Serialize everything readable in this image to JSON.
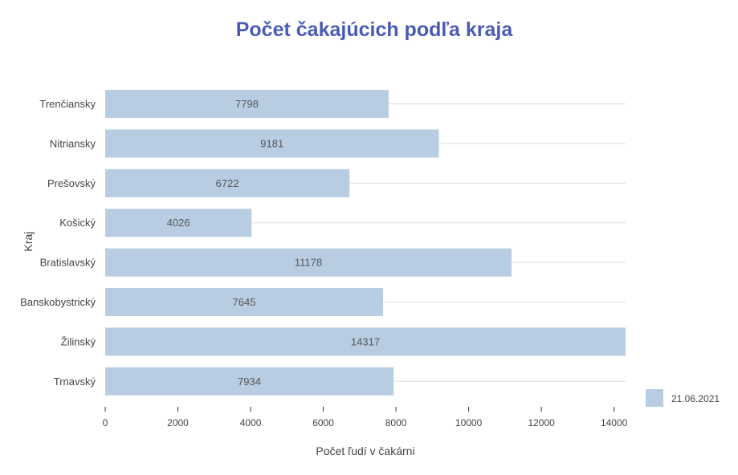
{
  "chart_data": {
    "type": "bar",
    "orientation": "horizontal",
    "title": "Počet čakajúcich podľa kraja",
    "xlabel": "Počet ľudí v čakárni",
    "ylabel": "Kraj",
    "categories": [
      "Trenčiansky",
      "Nitriansky",
      "Prešovský",
      "Košický",
      "Bratislavský",
      "Banskobystrický",
      "Žilinský",
      "Trnavský"
    ],
    "series": [
      {
        "name": "21.06.2021",
        "values": [
          7798,
          9181,
          6722,
          4026,
          11178,
          7645,
          14317,
          7934
        ]
      }
    ],
    "xlim": [
      0,
      14317
    ],
    "xticks": [
      "0",
      "2000",
      "4000",
      "6000",
      "8000",
      "10000",
      "12000",
      "14000"
    ],
    "grid": true,
    "legend_position": "bottom-right",
    "colors": {
      "bar": "#b8cde2",
      "title": "#4a5bb5",
      "grid": "#dddddd"
    }
  }
}
